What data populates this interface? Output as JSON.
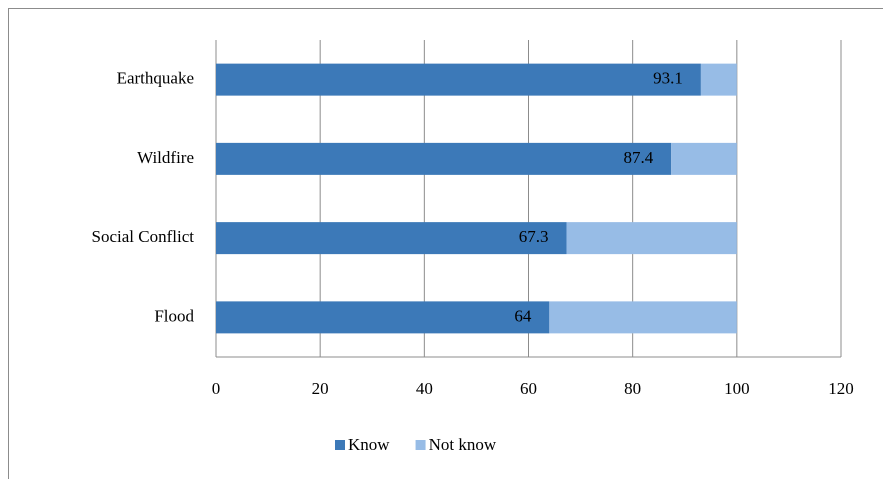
{
  "chart_data": {
    "type": "stacked-barh",
    "categories": [
      "Earthquake",
      "Wildfire",
      "Social Conflict",
      "Flood"
    ],
    "series": [
      {
        "name": "Know",
        "color": "#3c79b8",
        "values": [
          93.1,
          87.4,
          67.3,
          64
        ],
        "data_labels": true
      },
      {
        "name": "Not know",
        "color": "#97bce6",
        "values": [
          6.9,
          12.6,
          32.7,
          36
        ],
        "data_labels": false
      }
    ],
    "xlim": [
      0,
      120
    ],
    "xticks": [
      0,
      20,
      40,
      60,
      80,
      100,
      120
    ],
    "grid": true,
    "legend": "bottom"
  }
}
